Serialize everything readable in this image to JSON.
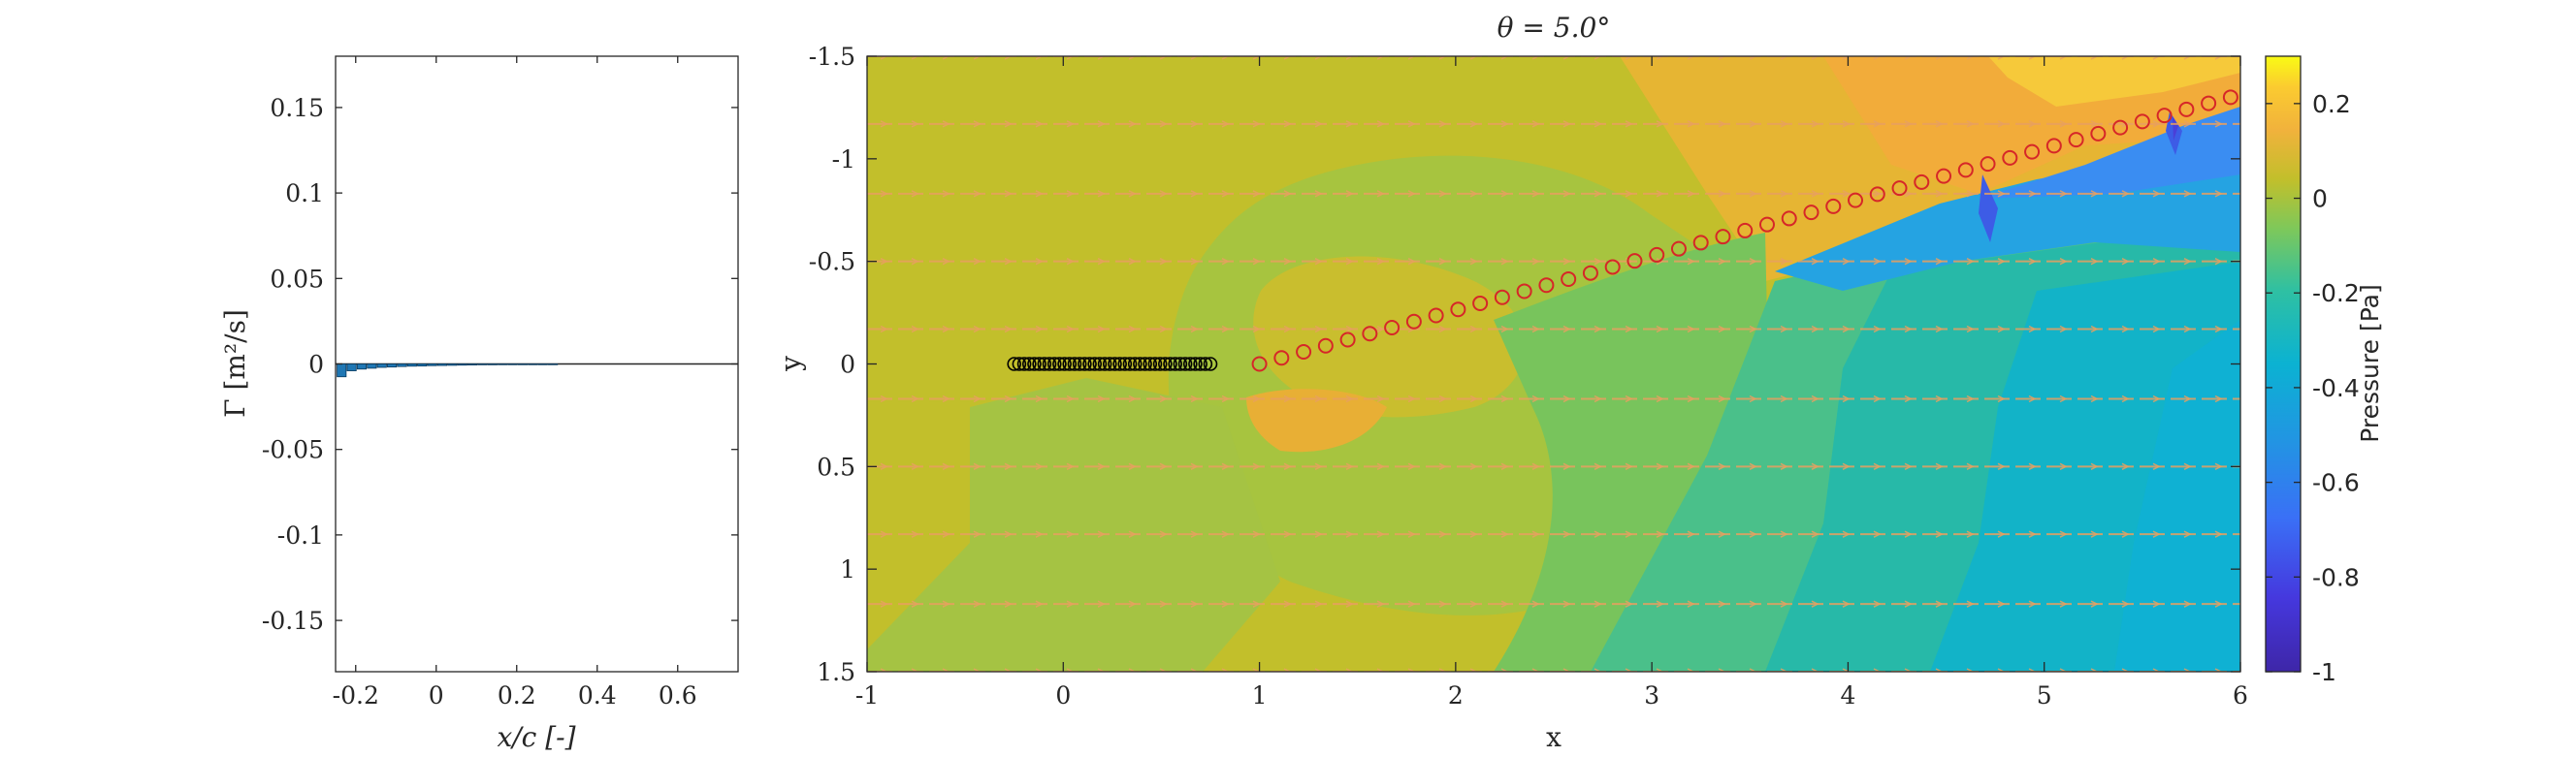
{
  "chart_data": [
    {
      "id": "circulation",
      "type": "bar",
      "xlabel": "x/c [-]",
      "ylabel": "Γ [m²/s]",
      "xlim": [
        -0.25,
        0.75
      ],
      "ylim": [
        -0.18,
        0.18
      ],
      "xticks": [
        "-0.2",
        "0",
        "0.2",
        "0.4",
        "0.6"
      ],
      "xtick_values": [
        -0.2,
        0,
        0.2,
        0.4,
        0.6
      ],
      "yticks": [
        "0.15",
        "0.1",
        "0.05",
        "0",
        "-0.05",
        "-0.1",
        "-0.15"
      ],
      "ytick_values": [
        0.15,
        0.1,
        0.05,
        0,
        -0.05,
        -0.1,
        -0.15
      ],
      "bar_color": "#1f77b4",
      "x": [
        -0.235,
        -0.21,
        -0.185,
        -0.16,
        -0.135,
        -0.11,
        -0.085,
        -0.06,
        -0.035,
        -0.01,
        0.015,
        0.04,
        0.065,
        0.09,
        0.115,
        0.14,
        0.165,
        0.19,
        0.215,
        0.24,
        0.265,
        0.29
      ],
      "values": [
        -0.0075,
        -0.004,
        -0.003,
        -0.0025,
        -0.002,
        -0.0018,
        -0.0015,
        -0.0013,
        -0.0012,
        -0.001,
        -0.0009,
        -0.0008,
        -0.0007,
        -0.0006,
        -0.0005,
        -0.0005,
        -0.0004,
        -0.0004,
        -0.0003,
        -0.0003,
        -0.0002,
        -0.0002
      ],
      "grid": false
    },
    {
      "id": "pressure-field",
      "type": "heatmap",
      "title": "θ = 5.0°",
      "xlabel": "x",
      "ylabel": "y",
      "xlim": [
        -1,
        6
      ],
      "ylim": [
        -1.5,
        1.5
      ],
      "y_reversed": true,
      "xticks": [
        "-1",
        "0",
        "1",
        "2",
        "3",
        "4",
        "5",
        "6"
      ],
      "xtick_values": [
        -1,
        0,
        1,
        2,
        3,
        4,
        5,
        6
      ],
      "yticks": [
        "-1.5",
        "-1",
        "-0.5",
        "0",
        "0.5",
        "1",
        "1.5"
      ],
      "ytick_values": [
        -1.5,
        -1,
        -0.5,
        0,
        0.5,
        1,
        1.5
      ],
      "colorbar": {
        "label": "Pressure [Pa]",
        "range": [
          -1,
          0.3
        ],
        "ticks": [
          "0.2",
          "0",
          "-0.2",
          "-0.4",
          "-0.6",
          "-0.8",
          "-1"
        ],
        "tick_values": [
          0.2,
          0,
          -0.2,
          -0.4,
          -0.6,
          -0.8,
          -1
        ],
        "colormap": "parula"
      },
      "bound_vortices": {
        "x_start": -0.25,
        "x_end": 0.75,
        "y": 0,
        "count": 40,
        "color": "#000000"
      },
      "wake_vortices": {
        "x_start": 1.0,
        "x_end": 5.95,
        "y_start": 0,
        "y_end": -1.3,
        "count": 45,
        "color": "#d62728"
      },
      "streamlines_y": [
        -1.5,
        -1.17,
        -0.83,
        -0.5,
        -0.17,
        0.17,
        0.5,
        0.83,
        1.17,
        1.5
      ],
      "streamline_color": "#e8a060"
    }
  ]
}
